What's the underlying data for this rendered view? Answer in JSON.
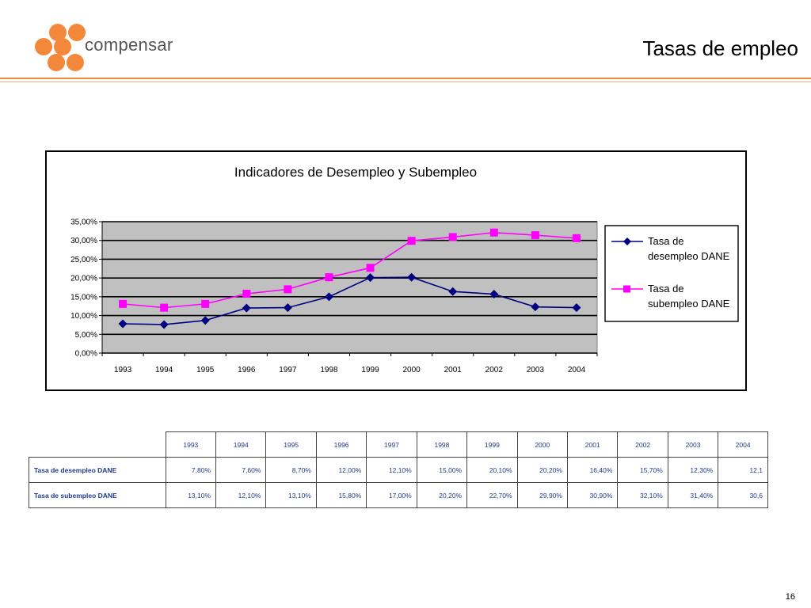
{
  "header": {
    "logo_text": "compensar",
    "title": "Tasas de empleo"
  },
  "chart_data": {
    "type": "line",
    "title": "Indicadores de Desempleo y Subempleo",
    "categories": [
      "1993",
      "1994",
      "1995",
      "1996",
      "1997",
      "1998",
      "1999",
      "2000",
      "2001",
      "2002",
      "2003",
      "2004"
    ],
    "ylim": [
      0,
      35
    ],
    "y_ticks": [
      "0,00%",
      "5,00%",
      "10,00%",
      "15,00%",
      "20,00%",
      "25,00%",
      "30,00%",
      "35,00%"
    ],
    "grid": true,
    "legend_position": "right",
    "series": [
      {
        "name": "Tasa de desempleo DANE",
        "legend_lines": [
          "Tasa de",
          "desempleo DANE"
        ],
        "color": "#000080",
        "marker": "diamond",
        "values": [
          7.8,
          7.6,
          8.7,
          12.0,
          12.1,
          15.0,
          20.1,
          20.2,
          16.4,
          15.7,
          12.3,
          12.1
        ]
      },
      {
        "name": "Tasa de subempleo DANE",
        "legend_lines": [
          "Tasa de",
          "subempleo DANE"
        ],
        "color": "#ff00ff",
        "marker": "square",
        "values": [
          13.1,
          12.1,
          13.1,
          15.8,
          17.0,
          20.2,
          22.7,
          29.9,
          30.9,
          32.1,
          31.4,
          30.6
        ]
      }
    ],
    "plot_background": "#c0c0c0"
  },
  "table": {
    "years": [
      "1993",
      "1994",
      "1995",
      "1996",
      "1997",
      "1998",
      "1999",
      "2000",
      "2001",
      "2002",
      "2003",
      "2004"
    ],
    "rows": [
      {
        "label": "Tasa de desempleo DANE",
        "cells": [
          "7,80%",
          "7,60%",
          "8,70%",
          "12,00%",
          "12,10%",
          "15,00%",
          "20,10%",
          "20,20%",
          "16,40%",
          "15,70%",
          "12,30%",
          "12,1"
        ]
      },
      {
        "label": "Tasa de subempleo DANE",
        "cells": [
          "13,10%",
          "12,10%",
          "13,10%",
          "15,80%",
          "17,00%",
          "20,20%",
          "22,70%",
          "29,90%",
          "30,90%",
          "32,10%",
          "31,40%",
          "30,6"
        ]
      }
    ]
  },
  "footer": {
    "page_number": "16"
  }
}
